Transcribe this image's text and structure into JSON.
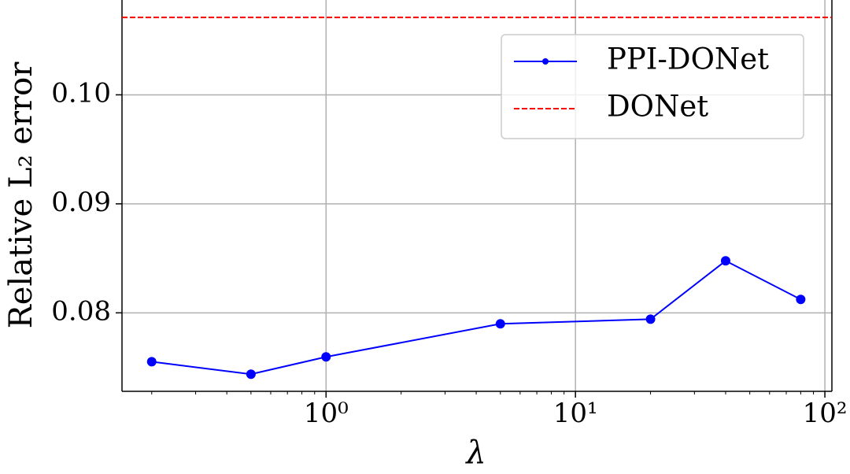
{
  "chart_data": {
    "type": "line",
    "xlabel": "λ",
    "ylabel": "Relative L₂ error",
    "x": [
      0.2,
      0.5,
      1,
      5,
      20,
      40,
      80
    ],
    "series": [
      {
        "name": "PPI-DONet",
        "color": "#0000ff",
        "values": [
          0.07552,
          0.07437,
          0.07596,
          0.07899,
          0.07942,
          0.08477,
          0.08123
        ]
      }
    ],
    "reference_lines": [
      {
        "name": "DONet",
        "color": "#ff0000",
        "value": 0.1071
      }
    ],
    "xscale": "log",
    "xlim": [
      0.152,
      106.7
    ],
    "ylim": [
      0.0728,
      0.1087
    ],
    "xticks": [
      {
        "value": 1,
        "label": "10⁰"
      },
      {
        "value": 10,
        "label": "10¹"
      },
      {
        "value": 100,
        "label": "10²"
      }
    ],
    "xticks_minor": [
      0.2,
      0.3,
      0.4,
      0.5,
      0.6,
      0.7,
      0.8,
      0.9,
      2,
      3,
      4,
      5,
      6,
      7,
      8,
      9,
      20,
      30,
      40,
      50,
      60,
      70,
      80,
      90
    ],
    "yticks": [
      0.08,
      0.09,
      {
        "value": 0.1,
        "label": "0.10"
      }
    ],
    "grid": true,
    "legend": "upper right"
  }
}
